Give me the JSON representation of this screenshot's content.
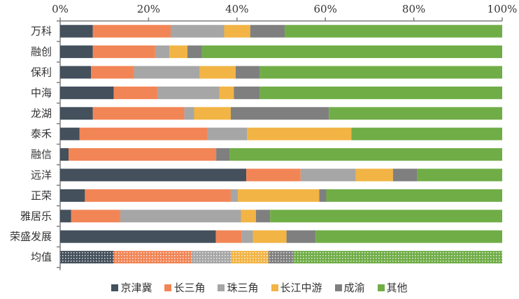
{
  "chart_data": {
    "type": "bar",
    "orientation": "horizontal",
    "stacked": "percent",
    "title": "",
    "xlabel": "",
    "ylabel": "",
    "xlim": [
      0,
      100
    ],
    "x_ticks": [
      "0%",
      "20%",
      "40%",
      "60%",
      "80%",
      "100%"
    ],
    "x_tick_values": [
      0,
      20,
      40,
      60,
      80,
      100
    ],
    "x_axis_position": "top",
    "grid": false,
    "legend_position": "bottom",
    "categories": [
      "万科",
      "融创",
      "保利",
      "中海",
      "龙湖",
      "泰禾",
      "融信",
      "远洋",
      "正荣",
      "雅居乐",
      "荣盛发展",
      "均值"
    ],
    "series": [
      {
        "name": "京津冀",
        "color": "#44505c",
        "values": [
          7.4,
          7.4,
          7.0,
          12.1,
          7.4,
          4.4,
          1.9,
          42.1,
          5.6,
          2.5,
          35.2,
          12.1
        ]
      },
      {
        "name": "长三角",
        "color": "#f28556",
        "values": [
          17.6,
          14.1,
          9.7,
          10.0,
          20.7,
          28.9,
          33.4,
          12.3,
          33.0,
          11.1,
          5.8,
          17.7
        ]
      },
      {
        "name": "珠三角",
        "color": "#a6a6a6",
        "values": [
          12.1,
          3.2,
          14.9,
          13.9,
          2.2,
          9.0,
          0,
          12.5,
          1.6,
          27.3,
          2.6,
          8.9
        ]
      },
      {
        "name": "长江中游",
        "color": "#f2b444",
        "values": [
          5.9,
          4.1,
          8.1,
          3.3,
          8.3,
          23.6,
          0,
          8.4,
          18.4,
          3.4,
          7.6,
          8.4
        ]
      },
      {
        "name": "成渝",
        "color": "#7f7f7f",
        "values": [
          7.8,
          3.3,
          5.5,
          5.9,
          22.2,
          0,
          3.0,
          5.5,
          1.6,
          3.2,
          6.6,
          5.7
        ]
      },
      {
        "name": "其他",
        "color": "#70ad47",
        "values": [
          49.2,
          67.9,
          54.8,
          54.8,
          39.2,
          34.1,
          61.7,
          19.2,
          39.8,
          52.5,
          42.2,
          47.2
        ]
      }
    ],
    "patterned_categories": [
      "均值"
    ]
  }
}
